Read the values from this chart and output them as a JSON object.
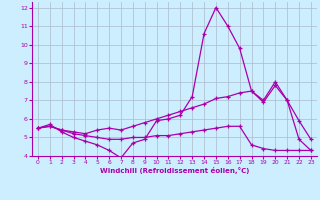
{
  "xlabel": "Windchill (Refroidissement éolien,°C)",
  "xlim": [
    -0.5,
    23.5
  ],
  "ylim": [
    4,
    12.3
  ],
  "xticks": [
    0,
    1,
    2,
    3,
    4,
    5,
    6,
    7,
    8,
    9,
    10,
    11,
    12,
    13,
    14,
    15,
    16,
    17,
    18,
    19,
    20,
    21,
    22,
    23
  ],
  "yticks": [
    4,
    5,
    6,
    7,
    8,
    9,
    10,
    11,
    12
  ],
  "background_color": "#cceeff",
  "grid_color": "#aabbcc",
  "line_color": "#aa00aa",
  "line1_y": [
    5.5,
    5.7,
    5.3,
    5.0,
    4.8,
    4.6,
    4.3,
    3.9,
    4.7,
    4.9,
    5.9,
    6.0,
    6.2,
    7.2,
    10.6,
    12.0,
    11.0,
    9.8,
    7.5,
    7.0,
    8.0,
    7.0,
    5.9,
    4.9
  ],
  "line2_y": [
    5.5,
    5.6,
    5.4,
    5.3,
    5.2,
    5.4,
    5.5,
    5.4,
    5.6,
    5.8,
    6.0,
    6.2,
    6.4,
    6.6,
    6.8,
    7.1,
    7.2,
    7.4,
    7.5,
    6.9,
    7.8,
    7.0,
    4.9,
    4.3
  ],
  "line3_y": [
    5.5,
    5.6,
    5.4,
    5.2,
    5.1,
    5.0,
    4.9,
    4.9,
    5.0,
    5.0,
    5.1,
    5.1,
    5.2,
    5.3,
    5.4,
    5.5,
    5.6,
    5.6,
    4.6,
    4.4,
    4.3,
    4.3,
    4.3,
    4.3
  ]
}
